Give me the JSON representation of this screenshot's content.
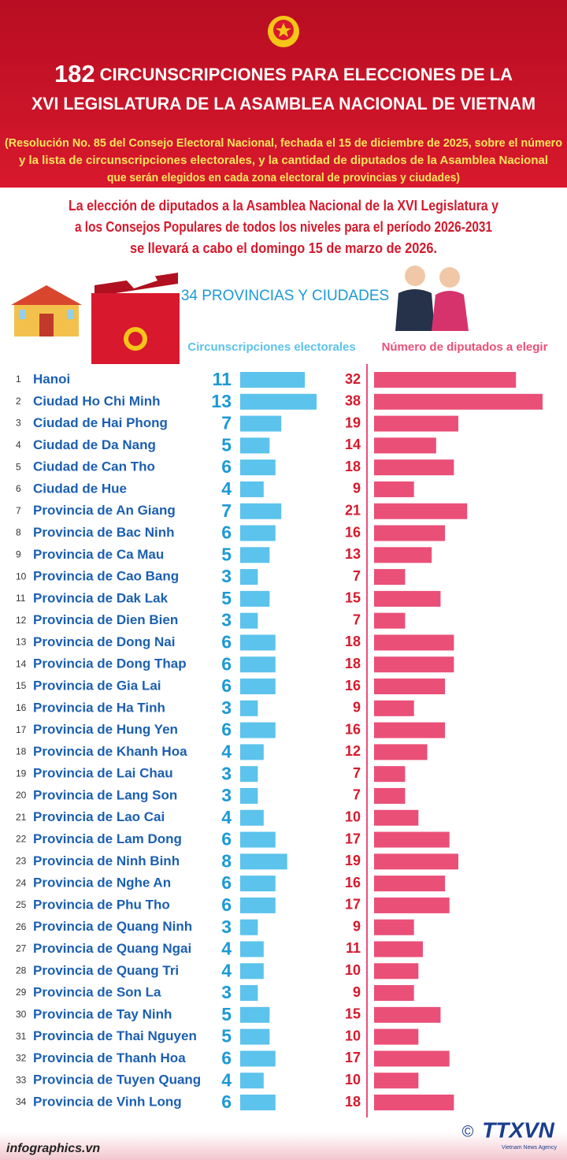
{
  "chart_data": {
    "type": "bar",
    "title_number": "182",
    "title": "CIRCUNSCRIPCIONES PARA ELECCIONES DE LA",
    "title_line2": "XVI LEGISLATURA DE LA ASAMBLEA NACIONAL DE VIETNAM",
    "subtitle": [
      "(Resolución No. 85 del Consejo Electoral Nacional, fechada el 15 de diciembre de 2025, sobre el número",
      "y la lista de circunscripciones electorales, y la cantidad de diputados de la Asamblea Nacional",
      "que serán elegidos en cada zona electoral de provincias y ciudades)"
    ],
    "intro": [
      "La elección de diputados a la Asamblea Nacional de la XVI Legislatura y",
      "a los Consejos Populares de todos los niveles para el período 2026-2031",
      "se llevará a cabo el domingo 15 de marzo de 2026."
    ],
    "banner": "34 PROVINCIAS Y CIUDADES",
    "ranks": [
      1,
      2,
      3,
      4,
      5,
      6,
      7,
      8,
      9,
      10,
      11,
      12,
      13,
      14,
      15,
      16,
      17,
      18,
      19,
      20,
      21,
      22,
      23,
      24,
      25,
      26,
      27,
      28,
      29,
      30,
      31,
      32,
      33,
      34
    ],
    "categories": [
      "Hanoi",
      "Ciudad Ho Chi Minh",
      "Ciudad de Hai Phong",
      "Ciudad de Da Nang",
      "Ciudad de Can Tho",
      "Ciudad de Hue",
      "Provincia de An Giang",
      "Provincia de Bac Ninh",
      "Provincia de Ca Mau",
      "Provincia de Cao Bang",
      "Provincia de Dak Lak",
      "Provincia de Dien Bien",
      "Provincia de Dong Nai",
      "Provincia de Dong Thap",
      "Provincia de Gia Lai",
      "Provincia de Ha Tinh",
      "Provincia de Hung Yen",
      "Provincia de Khanh Hoa",
      "Provincia de Lai Chau",
      "Provincia de Lang Son",
      "Provincia de Lao Cai",
      "Provincia de Lam Dong",
      "Provincia de Ninh Binh",
      "Provincia de Nghe An",
      "Provincia de Phu Tho",
      "Provincia de Quang Ninh",
      "Provincia de Quang Ngai",
      "Provincia de Quang Tri",
      "Provincia de Son La",
      "Provincia de Tay Ninh",
      "Provincia de Thai Nguyen",
      "Provincia de Thanh Hoa",
      "Provincia de Tuyen Quang",
      "Provincia de Vinh Long"
    ],
    "series": [
      {
        "name": "Circunscripciones electorales",
        "color": "#5bc3ec",
        "values": [
          11,
          13,
          7,
          5,
          6,
          4,
          7,
          6,
          5,
          3,
          5,
          3,
          6,
          6,
          6,
          3,
          6,
          4,
          3,
          3,
          4,
          6,
          8,
          6,
          6,
          3,
          4,
          4,
          3,
          5,
          5,
          6,
          4,
          6
        ]
      },
      {
        "name": "Número de diputados a elegir",
        "color": "#ea4f78",
        "values": [
          32,
          38,
          19,
          14,
          18,
          9,
          21,
          16,
          13,
          7,
          15,
          7,
          18,
          18,
          16,
          9,
          16,
          12,
          7,
          7,
          10,
          17,
          19,
          16,
          17,
          9,
          11,
          10,
          9,
          15,
          10,
          17,
          10,
          18
        ]
      }
    ],
    "source": "infographics.vn",
    "logo": "TTXVN",
    "logo_sub": "Vietnam News Agency"
  }
}
